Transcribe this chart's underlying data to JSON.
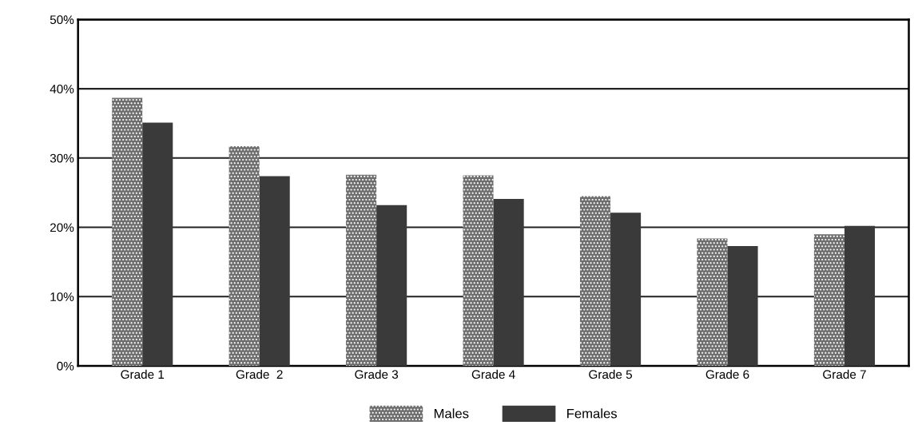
{
  "chart_data": {
    "type": "bar",
    "categories": [
      "Grade 1",
      "Grade  2",
      "Grade 3",
      "Grade 4",
      "Grade 5",
      "Grade 6",
      "Grade 7"
    ],
    "series": [
      {
        "name": "Males",
        "color": "#6e6e6e",
        "values": [
          38.7,
          31.7,
          27.6,
          27.5,
          24.5,
          18.4,
          19.0
        ]
      },
      {
        "name": "Females",
        "color": "#3a3a3a",
        "values": [
          35.1,
          27.4,
          23.2,
          24.1,
          22.1,
          17.3,
          20.2
        ]
      }
    ],
    "ylim": [
      0,
      50
    ],
    "yticks": [
      {
        "value": 0,
        "label": "0%"
      },
      {
        "value": 10,
        "label": "10%"
      },
      {
        "value": 20,
        "label": "20%"
      },
      {
        "value": 30,
        "label": "30%"
      },
      {
        "value": 40,
        "label": "40%"
      },
      {
        "value": 50,
        "label": "50%"
      }
    ],
    "grid": "y",
    "legend": "bottom"
  }
}
